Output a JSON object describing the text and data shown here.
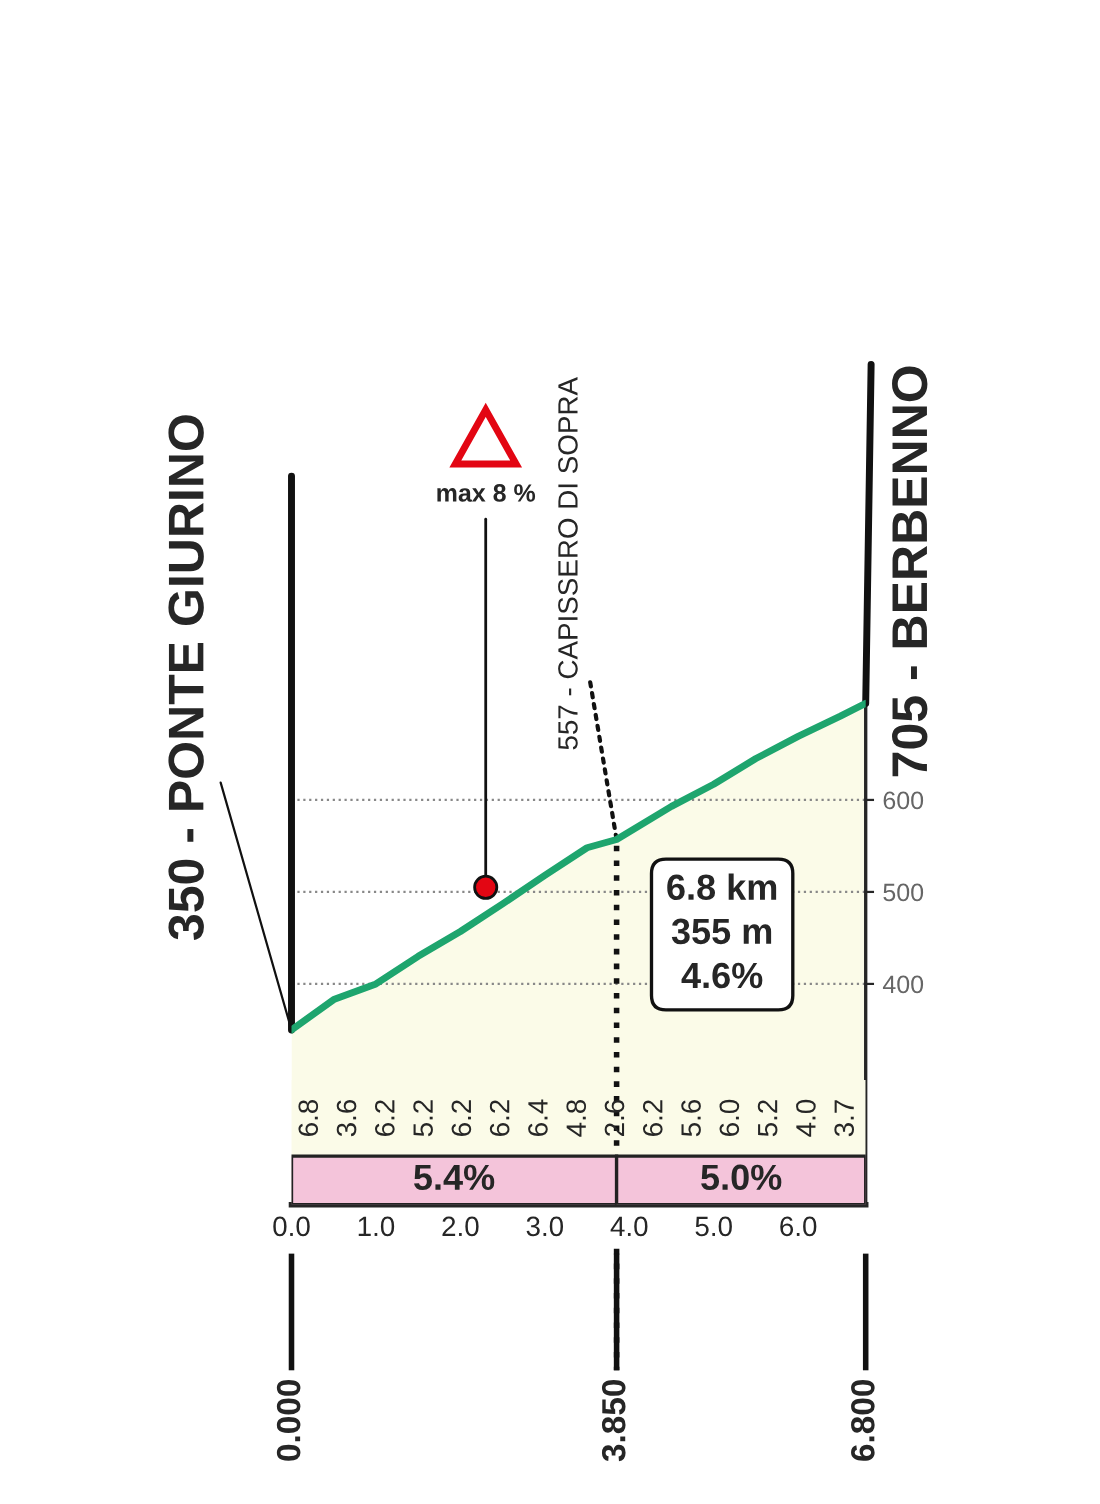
{
  "chart_data": {
    "type": "area",
    "x": [
      0,
      0.5,
      1.0,
      1.5,
      2.0,
      2.5,
      3.0,
      3.5,
      3.85,
      4.5,
      5.0,
      5.5,
      6.0,
      6.5,
      6.8
    ],
    "series": [
      {
        "color": "#1ea56e",
        "values": [
          350,
          383,
          400,
          430,
          457,
          487,
          518,
          548,
          557,
          593,
          617,
          645,
          669,
          691,
          705
        ]
      }
    ],
    "xlim": [
      0,
      6.8
    ],
    "ylim": [
      160,
      760
    ],
    "xticks": [
      {
        "value": 0,
        "label": "0.0"
      },
      {
        "value": 1,
        "label": "1.0"
      },
      {
        "value": 2,
        "label": "2.0"
      },
      {
        "value": 3,
        "label": "3.0"
      },
      {
        "value": 4,
        "label": "4.0"
      },
      {
        "value": 5,
        "label": "5.0"
      },
      {
        "value": 6,
        "label": "6.0"
      }
    ],
    "yticks": [
      400,
      500,
      600
    ],
    "grid": "y",
    "x2lim": [
      0,
      6.8
    ],
    "x2ticks": [
      {
        "value": 0,
        "label": "0.000"
      },
      {
        "value": 3.85,
        "label": "3.850"
      },
      {
        "value": 6.8,
        "label": "6.800"
      }
    ],
    "ref_lines": [
      {
        "axis": "x",
        "value": 3.85,
        "line_style": "dotted"
      }
    ],
    "bands": [
      {
        "axis": "x",
        "from": 0,
        "to": 3.85,
        "label": "5.4%",
        "color": "#f4c4da"
      },
      {
        "axis": "x",
        "from": 3.85,
        "to": 6.8,
        "label": "5.0%",
        "color": "#f4c4da"
      }
    ],
    "annotations": [
      {
        "text": "350 - PONTE GIURINO",
        "x": 0,
        "y": 350
      },
      {
        "text": "705 - BERBENNO",
        "x": 6.8,
        "y": 705
      },
      {
        "text": "557 - CAPISSERO DI SOPRA",
        "x": 3.85,
        "y": 557
      },
      {
        "text": "max 8 %",
        "x": 2.3,
        "y": 505
      },
      "6.8 km\n355 m\n4.6%",
      "6.8",
      "3.6",
      "6.2",
      "5.2",
      "6.2",
      "6.2",
      "6.4",
      "4.8",
      "2.6",
      "6.2",
      "5.6",
      "6.0",
      "5.2",
      "4.0",
      "3.7"
    ]
  }
}
